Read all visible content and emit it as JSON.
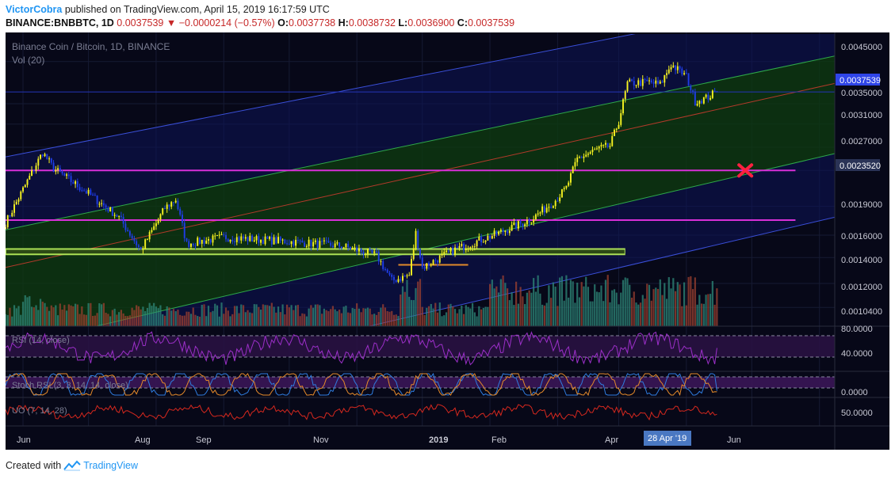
{
  "header": {
    "author": "VictorCobra",
    "published": "published on TradingView.com, April 15, 2019 16:17:59 UTC",
    "symbol": "BINANCE:BNBBTC, 1D",
    "last": "0.0037539",
    "change": "−0.0000214 (−0.57%)",
    "o_label": "O:",
    "o": "0.0037738",
    "h_label": "H:",
    "h": "0.0038732",
    "l_label": "L:",
    "l": "0.0036900",
    "c_label": "C:",
    "c": "0.0037539"
  },
  "legend": {
    "title": "Binance Coin / Bitcoin, 1D, BINANCE",
    "volume": "Vol (20)"
  },
  "indicators": {
    "rsi": "RSI (14, close)",
    "stoch": "Stoch RSI (3, 3, 14, 14, close)",
    "uo": "UO (7, 14, 28)"
  },
  "price_scale": [
    "0.0045000",
    "0.0035000",
    "0.0031000",
    "0.0027000",
    "0.0019000",
    "0.0016000",
    "0.0014000",
    "0.0012000",
    "0.0010400"
  ],
  "price_badges": {
    "current": "0.0037539",
    "level": "0.0023520"
  },
  "rsi_scale": [
    "80.0000",
    "40.0000"
  ],
  "stoch_scale": [
    "0.0000"
  ],
  "uo_scale": [
    "50.0000"
  ],
  "time_axis": [
    "Jun",
    "Aug",
    "Sep",
    "Nov",
    "2019",
    "Feb",
    "Apr",
    "Jun"
  ],
  "time_badge": "28 Apr '19",
  "footer": {
    "created_with": "Created with",
    "brand": "TradingView"
  },
  "colors": {
    "background": "#070818",
    "bull": "#f5f221",
    "bear": "#1f3de6",
    "support_zone": "#b5ec5a",
    "magenta_line": "#d82fd8",
    "channel_outer": "#3a4fd8",
    "channel_inner": "#2ea84a",
    "channel_mid": "#b33a2a",
    "price_line": "#2434b8",
    "cross": "#ff2040"
  },
  "chart_data": {
    "type": "candlestick",
    "title": "Binance Coin / Bitcoin, 1D, BINANCE",
    "period": "1D",
    "x_start": "2018-05-24",
    "x_end": "2019-04-15",
    "y_scale": "log",
    "ylim": [
      0.00093,
      0.0053
    ],
    "anchors": [
      {
        "date": "2018-05-24",
        "price": 0.00172
      },
      {
        "date": "2018-06-05",
        "price": 0.00232
      },
      {
        "date": "2018-06-10",
        "price": 0.00262
      },
      {
        "date": "2018-06-15",
        "price": 0.00238
      },
      {
        "date": "2018-07-01",
        "price": 0.00205
      },
      {
        "date": "2018-07-15",
        "price": 0.00178
      },
      {
        "date": "2018-07-25",
        "price": 0.00146
      },
      {
        "date": "2018-08-05",
        "price": 0.00188
      },
      {
        "date": "2018-08-10",
        "price": 0.00198
      },
      {
        "date": "2018-08-15",
        "price": 0.00152
      },
      {
        "date": "2018-09-01",
        "price": 0.00158
      },
      {
        "date": "2018-10-01",
        "price": 0.00154
      },
      {
        "date": "2018-10-25",
        "price": 0.0015
      },
      {
        "date": "2018-11-10",
        "price": 0.00142
      },
      {
        "date": "2018-11-17",
        "price": 0.00122
      },
      {
        "date": "2018-11-25",
        "price": 0.00126
      },
      {
        "date": "2018-11-28",
        "price": 0.00162
      },
      {
        "date": "2018-12-01",
        "price": 0.00132
      },
      {
        "date": "2018-12-15",
        "price": 0.00146
      },
      {
        "date": "2019-01-05",
        "price": 0.00162
      },
      {
        "date": "2019-01-20",
        "price": 0.00176
      },
      {
        "date": "2019-01-31",
        "price": 0.00197
      },
      {
        "date": "2019-02-05",
        "price": 0.00212
      },
      {
        "date": "2019-02-10",
        "price": 0.00252
      },
      {
        "date": "2019-02-20",
        "price": 0.00268
      },
      {
        "date": "2019-02-25",
        "price": 0.00272
      },
      {
        "date": "2019-03-01",
        "price": 0.00315
      },
      {
        "date": "2019-03-05",
        "price": 0.00395
      },
      {
        "date": "2019-03-15",
        "price": 0.00398
      },
      {
        "date": "2019-03-20",
        "price": 0.00392
      },
      {
        "date": "2019-03-25",
        "price": 0.00442
      },
      {
        "date": "2019-04-01",
        "price": 0.00412
      },
      {
        "date": "2019-04-05",
        "price": 0.00355
      },
      {
        "date": "2019-04-10",
        "price": 0.00362
      },
      {
        "date": "2019-04-15",
        "price": 0.0037539
      }
    ],
    "last_close": 0.0037539,
    "horizontal_levels": [
      0.002352,
      0.00175
    ],
    "support_zone": [
      0.00142,
      0.00148
    ],
    "projection_marker": {
      "date": "2019-04-28",
      "price": 0.002352
    },
    "channel": {
      "lines": [
        {
          "name": "outer-top",
          "points": [
            {
              "date": "2018-05-24",
              "price": 0.00255
            },
            {
              "date": "2019-06-08",
              "price": 0.0067
            }
          ]
        },
        {
          "name": "inner-top",
          "points": [
            {
              "date": "2018-05-24",
              "price": 0.00165
            },
            {
              "date": "2019-06-08",
              "price": 0.00465
            }
          ]
        },
        {
          "name": "mid",
          "points": [
            {
              "date": "2018-05-24",
              "price": 0.00132
            },
            {
              "date": "2019-06-08",
              "price": 0.00395
            }
          ]
        },
        {
          "name": "inner-bottom",
          "points": [
            {
              "date": "2018-05-24",
              "price": 0.00082
            },
            {
              "date": "2019-06-08",
              "price": 0.0026
            }
          ]
        },
        {
          "name": "outer-bottom",
          "points": [
            {
              "date": "2018-05-24",
              "price": 0.00056
            },
            {
              "date": "2019-06-08",
              "price": 0.00178
            }
          ]
        }
      ]
    },
    "rsi": {
      "last": 51,
      "range": [
        0,
        100
      ]
    },
    "stoch_rsi": {
      "last": 20,
      "range": [
        0,
        100
      ]
    },
    "uo": {
      "last": 48
    }
  }
}
